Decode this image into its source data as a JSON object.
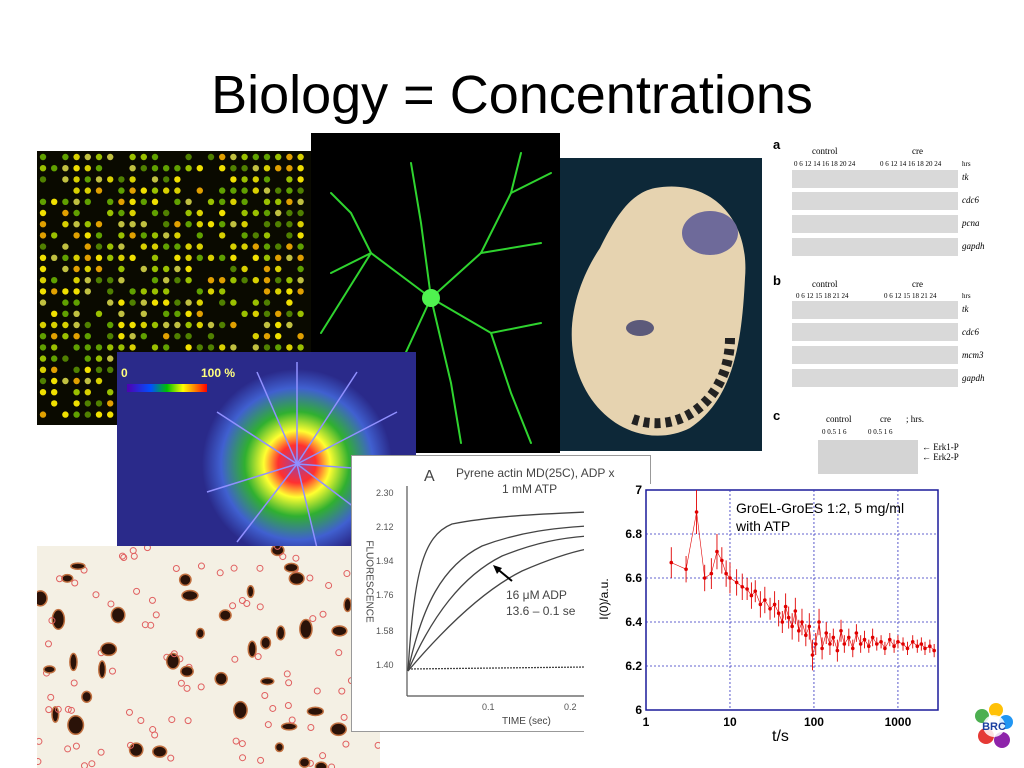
{
  "slide": {
    "title": "Biology = Concentrations"
  },
  "heatmap": {
    "min_label": "0",
    "max_label": "100 %"
  },
  "blots": {
    "panel_a": {
      "letter": "a",
      "groups": [
        "control",
        "cre"
      ],
      "ticks": "0  6  12 14 16 18  20  24",
      "unit": "hrs",
      "genes": [
        "tk",
        "cdc6",
        "pcna",
        "gapdh"
      ]
    },
    "panel_b": {
      "letter": "b",
      "groups": [
        "control",
        "cre"
      ],
      "ticks": "0  6  12  15  18  21  24",
      "unit": "hrs",
      "genes": [
        "tk",
        "cdc6",
        "mcm3",
        "gapdh"
      ]
    },
    "panel_c": {
      "letter": "c",
      "groups": [
        "control",
        "cre"
      ],
      "ticks": "0  0.5  1  6",
      "unit": "; hrs.",
      "bands": [
        "Erk1-P",
        "Erk2-P"
      ]
    }
  },
  "pyrene_plot": {
    "panel_letter": "A",
    "title_line1": "Pyrene actin MD(25C), ADP x",
    "title_line2": "1 mM ATP",
    "annotation_line1": "16 μM ADP",
    "annotation_line2": "13.6 – 0.1 se",
    "ylabel": "FLUORESCENCE",
    "xlabel": "TIME (sec)",
    "yticks": [
      "2.30",
      "2.12",
      "1.94",
      "1.76",
      "1.58",
      "1.40"
    ],
    "xticks": [
      "0.1",
      "0.2"
    ]
  },
  "chart_data": {
    "type": "scatter",
    "title": "GroEL-GroES 1:2, 5 mg/ml",
    "subtitle": "with ATP",
    "xlabel": "t/s",
    "ylabel": "I(0)/a.u.",
    "xscale": "log",
    "xlim": [
      1,
      3000
    ],
    "ylim": [
      5,
      7
    ],
    "xticks": [
      "1",
      "10",
      "100",
      "1000"
    ],
    "yticks": [
      "7",
      "6.8",
      "6.6",
      "6.4",
      "6.2",
      "6"
    ],
    "grid": true,
    "legend": "none",
    "color": "#e00000",
    "series": [
      {
        "x": [
          2,
          3,
          4,
          5,
          6,
          7,
          8,
          9,
          10,
          12,
          14,
          16,
          18,
          20,
          23,
          26,
          30,
          34,
          38,
          42,
          46,
          50,
          55,
          60,
          66,
          72,
          80,
          88,
          96,
          105,
          115,
          125,
          140,
          155,
          170,
          190,
          210,
          230,
          260,
          290,
          320,
          360,
          400,
          450,
          500,
          560,
          630,
          700,
          800,
          900,
          1000,
          1150,
          1300,
          1500,
          1700,
          1900,
          2100,
          2400,
          2700
        ],
        "y": [
          6.67,
          6.64,
          6.9,
          6.6,
          6.62,
          6.72,
          6.68,
          6.62,
          6.6,
          6.58,
          6.56,
          6.55,
          6.52,
          6.54,
          6.48,
          6.5,
          6.46,
          6.48,
          6.44,
          6.4,
          6.47,
          6.42,
          6.38,
          6.45,
          6.36,
          6.4,
          6.34,
          6.38,
          6.25,
          6.3,
          6.4,
          6.28,
          6.35,
          6.3,
          6.33,
          6.27,
          6.36,
          6.3,
          6.33,
          6.28,
          6.35,
          6.3,
          6.32,
          6.29,
          6.33,
          6.3,
          6.31,
          6.28,
          6.32,
          6.29,
          6.31,
          6.3,
          6.28,
          6.31,
          6.29,
          6.3,
          6.28,
          6.29,
          6.27
        ],
        "err": [
          0.07,
          0.06,
          0.1,
          0.06,
          0.07,
          0.08,
          0.06,
          0.06,
          0.07,
          0.06,
          0.06,
          0.05,
          0.06,
          0.05,
          0.06,
          0.06,
          0.05,
          0.06,
          0.06,
          0.05,
          0.06,
          0.05,
          0.06,
          0.06,
          0.05,
          0.06,
          0.05,
          0.06,
          0.07,
          0.05,
          0.06,
          0.05,
          0.05,
          0.05,
          0.04,
          0.05,
          0.05,
          0.04,
          0.04,
          0.04,
          0.04,
          0.04,
          0.04,
          0.03,
          0.04,
          0.03,
          0.03,
          0.03,
          0.03,
          0.03,
          0.03,
          0.03,
          0.03,
          0.03,
          0.03,
          0.03,
          0.03,
          0.03,
          0.03
        ]
      }
    ]
  }
}
